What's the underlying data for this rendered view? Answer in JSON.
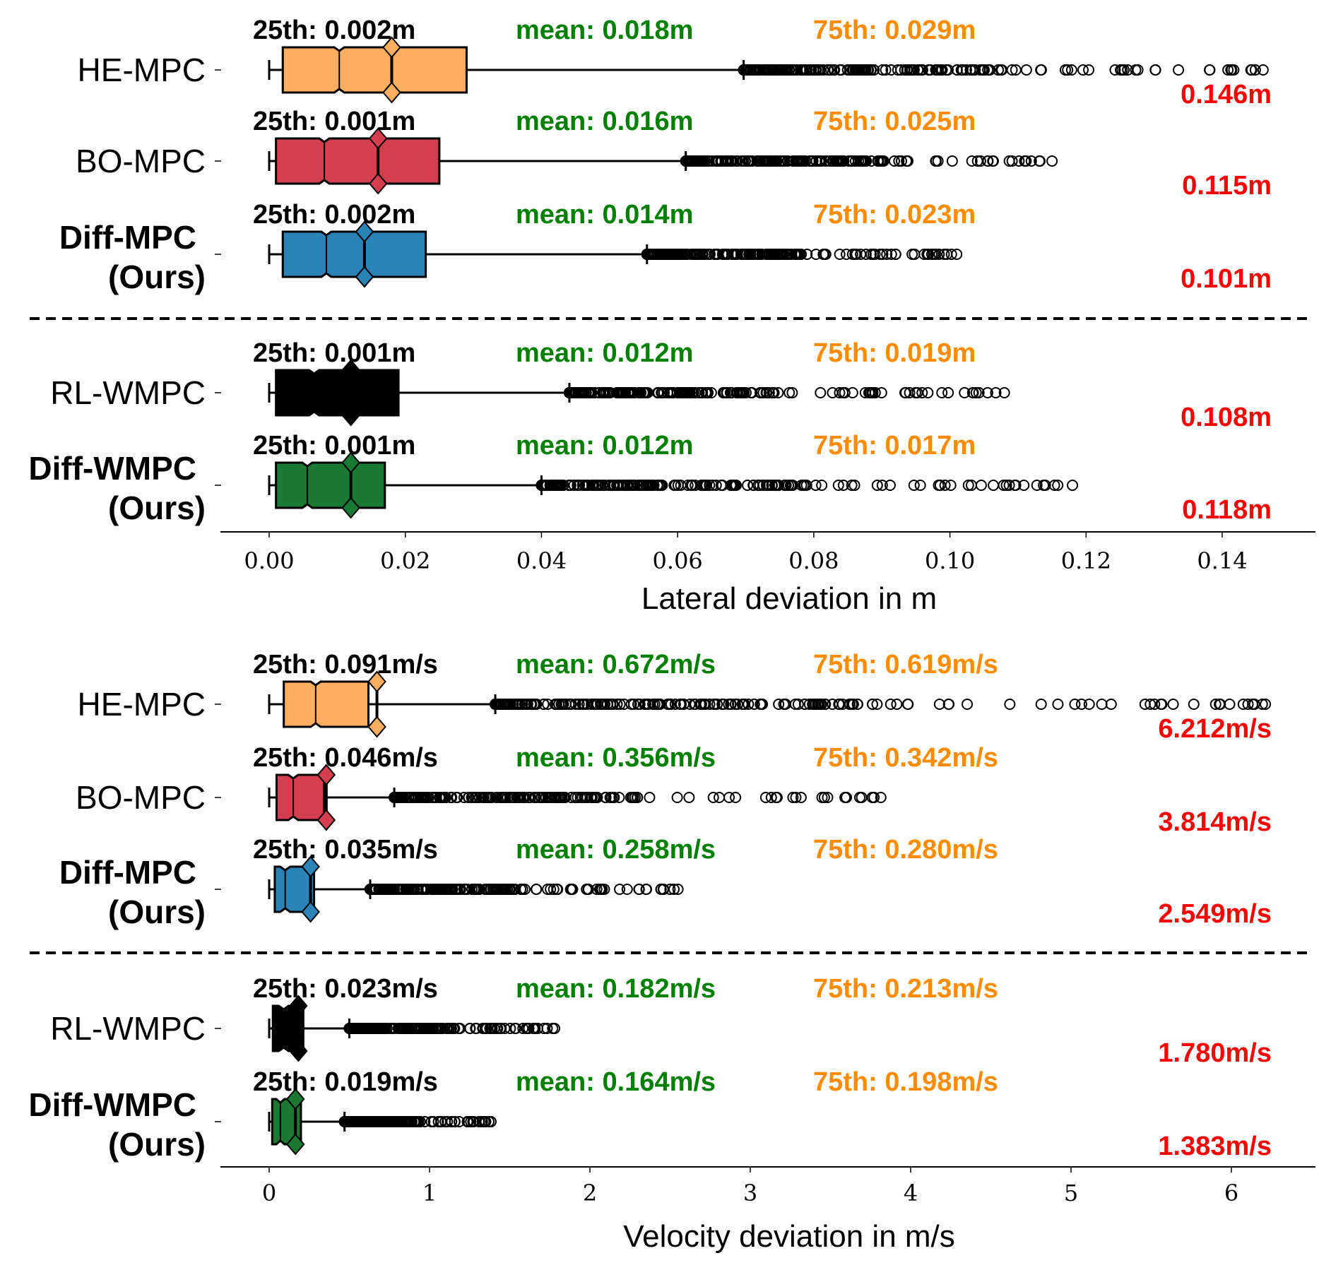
{
  "colors": {
    "p25": "#000000",
    "mean": "#008000",
    "p75": "#ff8c00",
    "max": "#ff0000"
  },
  "chart_data": [
    {
      "type": "box",
      "orientation": "horizontal",
      "xlabel": "Lateral deviation in m",
      "xlim": [
        -0.009,
        0.153
      ],
      "xticks": [
        0.0,
        0.02,
        0.04,
        0.06,
        0.08,
        0.1,
        0.12,
        0.14
      ],
      "xtick_labels": [
        "0.00",
        "0.02",
        "0.04",
        "0.06",
        "0.08",
        "0.10",
        "0.12",
        "0.14"
      ],
      "separator_after": 2,
      "categories": [
        {
          "label": [
            "HE-MPC"
          ],
          "bold": false,
          "color": "#fdae61",
          "stats": {
            "whislo": 0.0,
            "q1": 0.002,
            "median": 0.0103,
            "q3": 0.029,
            "mean": 0.018,
            "whishi": 0.0697,
            "max": 0.146
          },
          "annotations": {
            "p25": "25th: 0.002m",
            "mean": "mean: 0.018m",
            "p75": "75th: 0.029m",
            "max": "0.146m"
          }
        },
        {
          "label": [
            "BO-MPC"
          ],
          "bold": false,
          "color": "#d53e4f",
          "stats": {
            "whislo": 0.0,
            "q1": 0.001,
            "median": 0.0081,
            "q3": 0.025,
            "mean": 0.016,
            "whishi": 0.0612,
            "max": 0.115
          },
          "annotations": {
            "p25": "25th: 0.001m",
            "mean": "mean: 0.016m",
            "p75": "75th: 0.025m",
            "max": "0.115m"
          }
        },
        {
          "label": [
            "Diff-MPC",
            "(Ours)"
          ],
          "bold": true,
          "color": "#2b83ba",
          "stats": {
            "whislo": 0.0,
            "q1": 0.002,
            "median": 0.0084,
            "q3": 0.023,
            "mean": 0.014,
            "whishi": 0.0555,
            "max": 0.101
          },
          "annotations": {
            "p25": "25th: 0.002m",
            "mean": "mean: 0.014m",
            "p75": "75th: 0.023m",
            "max": "0.101m"
          }
        },
        {
          "label": [
            "RL-WMPC"
          ],
          "bold": false,
          "color": "#000000",
          "stats": {
            "whislo": 0.0,
            "q1": 0.001,
            "median": 0.0066,
            "q3": 0.019,
            "mean": 0.012,
            "whishi": 0.0441,
            "max": 0.108
          },
          "annotations": {
            "p25": "25th: 0.001m",
            "mean": "mean: 0.012m",
            "p75": "75th: 0.019m",
            "max": "0.108m"
          }
        },
        {
          "label": [
            "Diff-WMPC",
            "(Ours)"
          ],
          "bold": true,
          "color": "#1a7a33",
          "stats": {
            "whislo": 0.0,
            "q1": 0.001,
            "median": 0.0056,
            "q3": 0.017,
            "mean": 0.012,
            "whishi": 0.04,
            "max": 0.118
          },
          "annotations": {
            "p25": "25th: 0.001m",
            "mean": "mean: 0.012m",
            "p75": "75th: 0.017m",
            "max": "0.118m"
          }
        }
      ]
    },
    {
      "type": "box",
      "orientation": "horizontal",
      "xlabel": "Velocity deviation in m/s",
      "xlim": [
        -0.3,
        6.5
      ],
      "xticks": [
        0,
        1,
        2,
        3,
        4,
        5,
        6
      ],
      "xtick_labels": [
        "0",
        "1",
        "2",
        "3",
        "4",
        "5",
        "6"
      ],
      "separator_after": 2,
      "categories": [
        {
          "label": [
            "HE-MPC"
          ],
          "bold": false,
          "color": "#fdae61",
          "stats": {
            "whislo": 0.0,
            "q1": 0.091,
            "median": 0.29,
            "q3": 0.619,
            "mean": 0.672,
            "whishi": 1.41,
            "max": 6.212
          },
          "annotations": {
            "p25": "25th: 0.091m/s",
            "mean": "mean: 0.672m/s",
            "p75": "75th: 0.619m/s",
            "max": "6.212m/s"
          }
        },
        {
          "label": [
            "BO-MPC"
          ],
          "bold": false,
          "color": "#d53e4f",
          "stats": {
            "whislo": 0.0,
            "q1": 0.046,
            "median": 0.15,
            "q3": 0.342,
            "mean": 0.356,
            "whishi": 0.78,
            "max": 3.814
          },
          "annotations": {
            "p25": "25th: 0.046m/s",
            "mean": "mean: 0.356m/s",
            "p75": "75th: 0.342m/s",
            "max": "3.814m/s"
          }
        },
        {
          "label": [
            "Diff-MPC",
            "(Ours)"
          ],
          "bold": true,
          "color": "#2b83ba",
          "stats": {
            "whislo": 0.0,
            "q1": 0.035,
            "median": 0.1,
            "q3": 0.28,
            "mean": 0.258,
            "whishi": 0.63,
            "max": 2.549
          },
          "annotations": {
            "p25": "25th: 0.035m/s",
            "mean": "mean: 0.258m/s",
            "p75": "75th: 0.280m/s",
            "max": "2.549m/s"
          }
        },
        {
          "label": [
            "RL-WMPC"
          ],
          "bold": false,
          "color": "#000000",
          "stats": {
            "whislo": 0.0,
            "q1": 0.023,
            "median": 0.09,
            "q3": 0.213,
            "mean": 0.182,
            "whishi": 0.5,
            "max": 1.78
          },
          "annotations": {
            "p25": "25th: 0.023m/s",
            "mean": "mean: 0.182m/s",
            "p75": "75th: 0.213m/s",
            "max": "1.780m/s"
          }
        },
        {
          "label": [
            "Diff-WMPC",
            "(Ours)"
          ],
          "bold": true,
          "color": "#1a7a33",
          "stats": {
            "whislo": 0.0,
            "q1": 0.019,
            "median": 0.07,
            "q3": 0.198,
            "mean": 0.164,
            "whishi": 0.47,
            "max": 1.383
          },
          "annotations": {
            "p25": "25th: 0.019m/s",
            "mean": "mean: 0.164m/s",
            "p75": "75th: 0.198m/s",
            "max": "1.383m/s"
          }
        }
      ]
    }
  ]
}
